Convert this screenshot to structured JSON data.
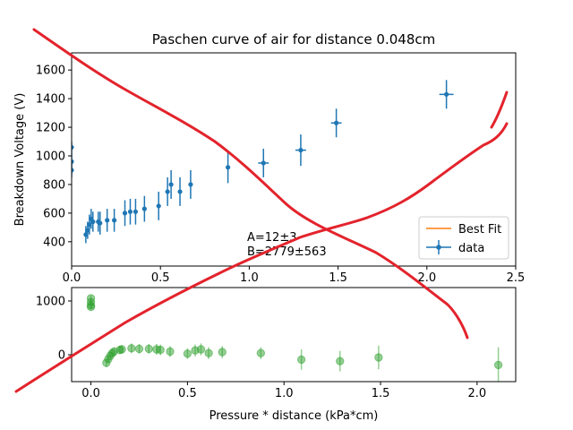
{
  "chart_data": [
    {
      "type": "scatter",
      "title": "Paschen curve of air for distance 0.048cm",
      "xlabel": "",
      "ylabel": "Breakdown Voltage (V)",
      "xlim": [
        0.0,
        2.5
      ],
      "ylim": [
        230,
        1720
      ],
      "xticks": [
        "0.0",
        "0.5",
        "1.0",
        "1.5",
        "2.0",
        "2.5"
      ],
      "xtick_values": [
        0.0,
        0.5,
        1.0,
        1.5,
        2.0,
        2.5
      ],
      "yticks": [
        "400",
        "600",
        "800",
        "1000",
        "1200",
        "1400",
        "1600"
      ],
      "ytick_values": [
        400,
        600,
        800,
        1000,
        1200,
        1400,
        1600
      ],
      "grid": false,
      "legend_position": "lower-right",
      "series": [
        {
          "name": "Best Fit",
          "kind": "line",
          "color": "#ff7f0e",
          "fit_params": {
            "A": 12,
            "B": 2779
          }
        },
        {
          "name": "data",
          "kind": "errorbar",
          "color": "#1f77b4",
          "points": [
            {
              "x": 0.0,
              "y": 1060,
              "yerr": 40,
              "xerr": 0.01
            },
            {
              "x": 0.0,
              "y": 960,
              "yerr": 60,
              "xerr": 0.01
            },
            {
              "x": 0.0,
              "y": 900,
              "yerr": 50,
              "xerr": 0.01
            },
            {
              "x": 0.08,
              "y": 450,
              "yerr": 60,
              "xerr": 0.01
            },
            {
              "x": 0.09,
              "y": 480,
              "yerr": 60,
              "xerr": 0.01
            },
            {
              "x": 0.1,
              "y": 520,
              "yerr": 70,
              "xerr": 0.01
            },
            {
              "x": 0.11,
              "y": 560,
              "yerr": 70,
              "xerr": 0.01
            },
            {
              "x": 0.12,
              "y": 540,
              "yerr": 70,
              "xerr": 0.01
            },
            {
              "x": 0.15,
              "y": 540,
              "yerr": 70,
              "xerr": 0.01
            },
            {
              "x": 0.16,
              "y": 530,
              "yerr": 80,
              "xerr": 0.01
            },
            {
              "x": 0.2,
              "y": 550,
              "yerr": 80,
              "xerr": 0.01
            },
            {
              "x": 0.24,
              "y": 550,
              "yerr": 80,
              "xerr": 0.01
            },
            {
              "x": 0.3,
              "y": 600,
              "yerr": 90,
              "xerr": 0.01
            },
            {
              "x": 0.33,
              "y": 610,
              "yerr": 90,
              "xerr": 0.01
            },
            {
              "x": 0.36,
              "y": 610,
              "yerr": 90,
              "xerr": 0.01
            },
            {
              "x": 0.41,
              "y": 630,
              "yerr": 90,
              "xerr": 0.01
            },
            {
              "x": 0.49,
              "y": 650,
              "yerr": 100,
              "xerr": 0.01
            },
            {
              "x": 0.54,
              "y": 750,
              "yerr": 100,
              "xerr": 0.01
            },
            {
              "x": 0.56,
              "y": 800,
              "yerr": 100,
              "xerr": 0.01
            },
            {
              "x": 0.61,
              "y": 750,
              "yerr": 100,
              "xerr": 0.01
            },
            {
              "x": 0.67,
              "y": 800,
              "yerr": 100,
              "xerr": 0.01
            },
            {
              "x": 0.88,
              "y": 920,
              "yerr": 110,
              "xerr": 0.01
            },
            {
              "x": 1.08,
              "y": 950,
              "yerr": 100,
              "xerr": 0.03
            },
            {
              "x": 1.29,
              "y": 1040,
              "yerr": 110,
              "xerr": 0.03
            },
            {
              "x": 1.49,
              "y": 1230,
              "yerr": 100,
              "xerr": 0.03
            },
            {
              "x": 2.11,
              "y": 1430,
              "yerr": 100,
              "xerr": 0.04
            }
          ]
        }
      ],
      "annotations": [
        "A=12±3",
        "B=2779±563"
      ]
    },
    {
      "type": "scatter",
      "title": "",
      "xlabel": "Pressure * distance (kPa*cm)",
      "ylabel": "",
      "xlim": [
        -0.1,
        2.2
      ],
      "ylim": [
        -500,
        1250
      ],
      "xticks": [
        "0.0",
        "0.5",
        "1.0",
        "1.5",
        "2.0"
      ],
      "xtick_values": [
        0.0,
        0.5,
        1.0,
        1.5,
        2.0
      ],
      "yticks": [
        "0",
        "1000"
      ],
      "ytick_values": [
        0,
        1000
      ],
      "grid": false,
      "series": [
        {
          "name": "",
          "kind": "residuals",
          "color": "#2ca02c",
          "points": [
            {
              "x": 0.0,
              "y": 1050,
              "yerr": 50
            },
            {
              "x": 0.0,
              "y": 980,
              "yerr": 60
            },
            {
              "x": 0.0,
              "y": 920,
              "yerr": 50
            },
            {
              "x": 0.0,
              "y": 890,
              "yerr": 50
            },
            {
              "x": 0.08,
              "y": -150,
              "yerr": 80
            },
            {
              "x": 0.09,
              "y": -80,
              "yerr": 80
            },
            {
              "x": 0.1,
              "y": -20,
              "yerr": 80
            },
            {
              "x": 0.11,
              "y": 30,
              "yerr": 80
            },
            {
              "x": 0.12,
              "y": 60,
              "yerr": 80
            },
            {
              "x": 0.15,
              "y": 90,
              "yerr": 80
            },
            {
              "x": 0.16,
              "y": 100,
              "yerr": 80
            },
            {
              "x": 0.21,
              "y": 120,
              "yerr": 90
            },
            {
              "x": 0.25,
              "y": 110,
              "yerr": 90
            },
            {
              "x": 0.3,
              "y": 110,
              "yerr": 90
            },
            {
              "x": 0.34,
              "y": 100,
              "yerr": 100
            },
            {
              "x": 0.36,
              "y": 90,
              "yerr": 100
            },
            {
              "x": 0.41,
              "y": 60,
              "yerr": 100
            },
            {
              "x": 0.5,
              "y": 20,
              "yerr": 100
            },
            {
              "x": 0.54,
              "y": 80,
              "yerr": 110
            },
            {
              "x": 0.57,
              "y": 100,
              "yerr": 110
            },
            {
              "x": 0.61,
              "y": 30,
              "yerr": 110
            },
            {
              "x": 0.68,
              "y": 50,
              "yerr": 110
            },
            {
              "x": 0.88,
              "y": 30,
              "yerr": 110
            },
            {
              "x": 1.09,
              "y": -90,
              "yerr": 190
            },
            {
              "x": 1.29,
              "y": -120,
              "yerr": 190
            },
            {
              "x": 1.49,
              "y": -50,
              "yerr": 220
            },
            {
              "x": 2.11,
              "y": -190,
              "yerr": 330
            }
          ]
        }
      ]
    }
  ],
  "overlay": {
    "color": "#e3232c",
    "description_only": false
  }
}
